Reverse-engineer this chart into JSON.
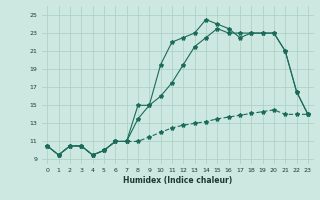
{
  "xlabel": "Humidex (Indice chaleur)",
  "ylabel": "",
  "bg_color": "#cde8e0",
  "grid_color": "#a8cfc4",
  "line_color": "#1a6b5a",
  "xlim": [
    -0.5,
    23.5
  ],
  "ylim": [
    8.5,
    26.0
  ],
  "xticks": [
    0,
    1,
    2,
    3,
    4,
    5,
    6,
    7,
    8,
    9,
    10,
    11,
    12,
    13,
    14,
    15,
    16,
    17,
    18,
    19,
    20,
    21,
    22,
    23
  ],
  "yticks": [
    9,
    11,
    13,
    15,
    17,
    19,
    21,
    23,
    25
  ],
  "line1_x": [
    0,
    1,
    2,
    3,
    4,
    5,
    6,
    7,
    8,
    9,
    10,
    11,
    12,
    13,
    14,
    15,
    16,
    17,
    18,
    19,
    20,
    21,
    22,
    23
  ],
  "line1_y": [
    10.5,
    9.5,
    10.5,
    10.5,
    9.5,
    10.0,
    11.0,
    11.0,
    13.5,
    15.0,
    19.5,
    22.0,
    22.5,
    23.0,
    24.5,
    24.0,
    23.5,
    22.5,
    23.0,
    23.0,
    23.0,
    21.0,
    16.5,
    14.0
  ],
  "line2_x": [
    0,
    1,
    2,
    3,
    4,
    5,
    6,
    7,
    8,
    9,
    10,
    11,
    12,
    13,
    14,
    15,
    16,
    17,
    18,
    19,
    20,
    21,
    22,
    23
  ],
  "line2_y": [
    10.5,
    9.5,
    10.5,
    10.5,
    9.5,
    10.0,
    11.0,
    11.0,
    15.0,
    15.0,
    16.0,
    17.5,
    19.5,
    21.5,
    22.5,
    23.5,
    23.0,
    23.0,
    23.0,
    23.0,
    23.0,
    21.0,
    16.5,
    14.0
  ],
  "line3_x": [
    0,
    1,
    2,
    3,
    4,
    5,
    6,
    7,
    8,
    9,
    10,
    11,
    12,
    13,
    14,
    15,
    16,
    17,
    18,
    19,
    20,
    21,
    22,
    23
  ],
  "line3_y": [
    10.5,
    9.5,
    10.5,
    10.5,
    9.5,
    10.0,
    11.0,
    11.0,
    11.0,
    11.5,
    12.0,
    12.5,
    12.8,
    13.0,
    13.2,
    13.5,
    13.7,
    13.9,
    14.1,
    14.3,
    14.5,
    14.0,
    14.0,
    14.0
  ]
}
